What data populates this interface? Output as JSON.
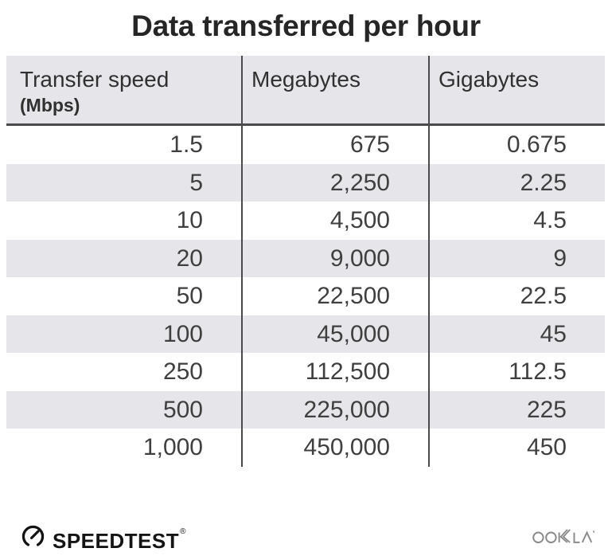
{
  "title": "Data transferred per hour",
  "chart_data": {
    "type": "table",
    "title": "Data transferred per hour",
    "columns": [
      "Transfer speed (Mbps)",
      "Megabytes",
      "Gigabytes"
    ],
    "rows": [
      [
        "1.5",
        "675",
        "0.675"
      ],
      [
        "5",
        "2,250",
        "2.25"
      ],
      [
        "10",
        "4,500",
        "4.5"
      ],
      [
        "20",
        "9,000",
        "9"
      ],
      [
        "50",
        "22,500",
        "22.5"
      ],
      [
        "100",
        "45,000",
        "45"
      ],
      [
        "250",
        "112,500",
        "112.5"
      ],
      [
        "500",
        "225,000",
        "225"
      ],
      [
        "1,000",
        "450,000",
        "450"
      ]
    ],
    "layout_hints": {
      "striped_rows": true,
      "stripe_color": "#e6e5e9",
      "column_dividers": true,
      "values_right_aligned": true
    }
  },
  "table": {
    "header": {
      "col1_line1": "Transfer speed",
      "col1_line2": "(Mbps)",
      "col2": "Megabytes",
      "col3": "Gigabytes"
    },
    "rows": [
      [
        "1.5",
        "675",
        "0.675"
      ],
      [
        "5",
        "2,250",
        "2.25"
      ],
      [
        "10",
        "4,500",
        "4.5"
      ],
      [
        "20",
        "9,000",
        "9"
      ],
      [
        "50",
        "22,500",
        "22.5"
      ],
      [
        "100",
        "45,000",
        "45"
      ],
      [
        "250",
        "112,500",
        "112.5"
      ],
      [
        "500",
        "225,000",
        "225"
      ],
      [
        "1,000",
        "450,000",
        "450"
      ]
    ]
  },
  "footer": {
    "speedtest_label": "SPEEDTEST",
    "speedtest_reg_mark": "®",
    "ookla_label": "OOKLA"
  },
  "colors": {
    "stripe": "#e6e5e9",
    "rule": "#4a4a4a",
    "num-text": "#3f3f3f",
    "header-text": "#303030",
    "title-color": "#262626",
    "logo-dark": "#141414",
    "logo-gray": "#8a8a8a"
  }
}
